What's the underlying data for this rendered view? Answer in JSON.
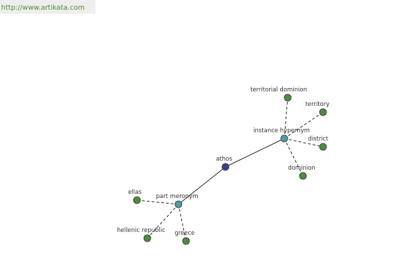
{
  "header": {
    "url": "http://www.artikata.com"
  },
  "nodes": [
    {
      "label": "athos"
    },
    {
      "label": "instance hypernym"
    },
    {
      "label": "part meronym"
    },
    {
      "label": "territorial dominion"
    },
    {
      "label": "territory"
    },
    {
      "label": "district"
    },
    {
      "label": "dominion"
    },
    {
      "label": "ellas"
    },
    {
      "label": "hellenic republic"
    },
    {
      "label": "greece"
    }
  ]
}
